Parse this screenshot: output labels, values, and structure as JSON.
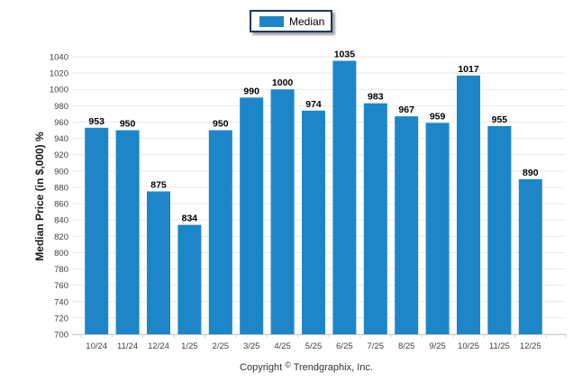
{
  "legend": {
    "label": "Median",
    "swatch_color": "#1c86c8",
    "border_color": "#17375e"
  },
  "footer": {
    "prefix": "Copyright",
    "symbol": "©",
    "suffix": "Trendgraphix, Inc."
  },
  "colors": {
    "bar": "#1c86c8",
    "gridline": "#e9e9e9",
    "axis_line": "#c9c9c9",
    "tick_mark": "#cdd5dd",
    "tick_label": "#404040",
    "value_label": "#000000"
  },
  "chart_data": {
    "type": "bar",
    "title": "",
    "categories": [
      "10/24",
      "11/24",
      "12/24",
      "1/25",
      "2/25",
      "3/25",
      "4/25",
      "5/25",
      "6/25",
      "7/25",
      "8/25",
      "9/25",
      "10/25",
      "11/25",
      "12/25"
    ],
    "values": [
      953,
      950,
      875,
      834,
      950,
      990,
      1000,
      974,
      1035,
      983,
      967,
      959,
      1017,
      955,
      890
    ],
    "series": [
      {
        "name": "Median",
        "values": [
          953,
          950,
          875,
          834,
          950,
          990,
          1000,
          974,
          1035,
          983,
          967,
          959,
          1017,
          955,
          890
        ]
      }
    ],
    "xlabel": "",
    "ylabel": "Median Price (in $,000) %",
    "ylim": [
      700,
      1040
    ],
    "ytick_step": 20,
    "grid": "horizontal",
    "legend_position": "top-center",
    "value_labels": true
  }
}
